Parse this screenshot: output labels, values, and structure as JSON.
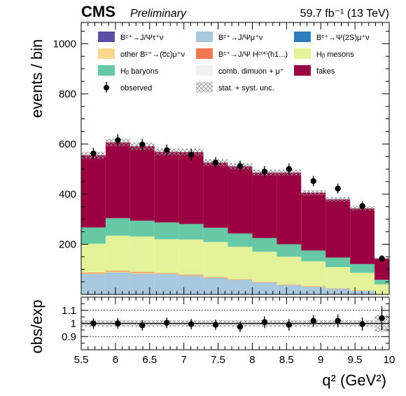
{
  "header": {
    "experiment": "CMS",
    "status": "Preliminary",
    "lumi": "59.7 fb⁻¹ (13 TeV)"
  },
  "chart_data": {
    "type": "bar",
    "stacked": true,
    "x_bin_edges": [
      5.5,
      5.857,
      6.214,
      6.571,
      6.929,
      7.286,
      7.643,
      8.0,
      8.357,
      8.714,
      9.071,
      9.429,
      9.786,
      10.0
    ],
    "xlim": [
      5.5,
      10.0
    ],
    "ylim": [
      0,
      1085
    ],
    "ratio_ylim": [
      0.8,
      1.2
    ],
    "xlabel": "q² (GeV²)",
    "ylabel": "events / bin",
    "ratio_ylabel": "obs/exp",
    "x_ticks": [
      "5.5",
      "6",
      "6.5",
      "7",
      "7.5",
      "8",
      "8.5",
      "9",
      "9.5",
      "10"
    ],
    "x_tick_values": [
      5.5,
      6.0,
      6.5,
      7.0,
      7.5,
      8.0,
      8.5,
      9.0,
      9.5,
      10.0
    ],
    "y_ticks": [
      "200",
      "400",
      "600",
      "800",
      "1000"
    ],
    "y_tick_values": [
      200,
      400,
      600,
      800,
      1000
    ],
    "ratio_ticks": [
      "0.9",
      "1",
      "1.1"
    ],
    "ratio_tick_values": [
      0.9,
      1.0,
      1.1
    ],
    "series": [
      {
        "name": "Bᶜ⁺→J/Ψτ⁺ν",
        "color": "#5c4ea3",
        "values": [
          1,
          1,
          1,
          1,
          1,
          1,
          1,
          1,
          1,
          1,
          1,
          1,
          0
        ]
      },
      {
        "name": "Bᶜ⁺→J/Ψμ⁺ν",
        "color": "#a8c8e0",
        "values": [
          78,
          85,
          80,
          78,
          72,
          62,
          55,
          45,
          35,
          27,
          20,
          13,
          2
        ]
      },
      {
        "name": "Bᶜ⁺→Ψ(2S)μ⁺ν",
        "color": "#2b7dbb",
        "values": [
          1,
          1,
          1,
          1,
          1,
          1,
          1,
          1,
          1,
          1,
          1,
          0,
          0
        ]
      },
      {
        "name": "other Bᶜ⁺→(c̅c)μ⁺ν",
        "color": "#f8d890",
        "values": [
          4,
          4,
          4,
          3,
          3,
          3,
          2,
          2,
          2,
          2,
          1,
          1,
          0
        ]
      },
      {
        "name": "Bᶜ⁺→J/Ψ Hᶜ⁽*⁾(h1...)",
        "color": "#f07850",
        "values": [
          3,
          3,
          3,
          2,
          2,
          2,
          1,
          1,
          1,
          1,
          1,
          1,
          0
        ]
      },
      {
        "name": "H_b mesons",
        "color": "#e4f29a",
        "values": [
          115,
          140,
          142,
          135,
          140,
          140,
          130,
          120,
          110,
          100,
          85,
          70,
          38
        ]
      },
      {
        "name": "H_b baryons",
        "color": "#66c8a4",
        "values": [
          65,
          70,
          63,
          67,
          62,
          57,
          53,
          55,
          50,
          43,
          38,
          35,
          18
        ]
      },
      {
        "name": "comb. dimuon + μ⁺",
        "color": "#f2f2f2",
        "values": [
          0,
          0,
          0,
          0,
          0,
          0,
          0,
          0,
          0,
          0,
          0,
          0,
          0
        ]
      },
      {
        "name": "fakes",
        "color": "#9b0042",
        "values": [
          288,
          302,
          297,
          282,
          287,
          260,
          268,
          261,
          286,
          231,
          232,
          222,
          85
        ]
      }
    ],
    "uncertainty": {
      "name": "stat. + syst. unc.",
      "rel": 0.025
    },
    "observed": {
      "name": "observed",
      "values": [
        562,
        615,
        598,
        575,
        557,
        526,
        512,
        490,
        500,
        452,
        422,
        352,
        143
      ],
      "errors": [
        23,
        24,
        24,
        23,
        23,
        22,
        22,
        22,
        22,
        21,
        20,
        19,
        12
      ]
    },
    "ratio": {
      "values": [
        1.0,
        1.0,
        0.985,
        1.005,
        0.995,
        0.99,
        0.975,
        1.01,
        0.99,
        1.02,
        1.02,
        0.995,
        1.04
      ],
      "errors": [
        0.04,
        0.04,
        0.04,
        0.04,
        0.04,
        0.04,
        0.04,
        0.045,
        0.045,
        0.045,
        0.05,
        0.05,
        0.09
      ]
    },
    "legend": {
      "placement": "top",
      "items": [
        {
          "label": "Bᶜ⁺→J/Ψτ⁺ν",
          "kind": "box",
          "color": "#5c4ea3"
        },
        {
          "label": "Bᶜ⁺→J/Ψμ⁺ν",
          "kind": "box",
          "color": "#a8c8e0"
        },
        {
          "label": "Bᶜ⁺→Ψ(2S)μ⁺ν",
          "kind": "box",
          "color": "#2b7dbb"
        },
        {
          "label": "other Bᶜ⁺→(c̅c)μ⁺ν",
          "kind": "box",
          "color": "#f8d890"
        },
        {
          "label": "Bᶜ⁺→J/Ψ Hᶜ⁽*⁾(h1...)",
          "kind": "box",
          "color": "#f07850"
        },
        {
          "label": "Hᵦ mesons",
          "kind": "box",
          "color": "#e4f29a"
        },
        {
          "label": "Hᵦ baryons",
          "kind": "box",
          "color": "#66c8a4"
        },
        {
          "label": "comb. dimuon + μ⁺",
          "kind": "box",
          "color": "#f2f2f2"
        },
        {
          "label": "fakes",
          "kind": "box",
          "color": "#9b0042"
        },
        {
          "label": "observed",
          "kind": "marker",
          "color": "#000000"
        },
        {
          "label": "stat. + syst. unc.",
          "kind": "hatch",
          "color": "#999999"
        }
      ]
    }
  }
}
